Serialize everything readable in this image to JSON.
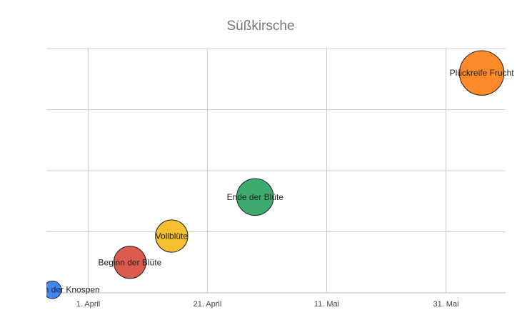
{
  "chart_data": {
    "type": "scatter",
    "subtype": "bubble",
    "title": "Süßkirsche",
    "xlabel": "",
    "ylabel": "",
    "x_axis": {
      "type": "date",
      "range": [
        "2020-03-25",
        "2020-06-10"
      ],
      "ticks": [
        {
          "date": "2020-04-01",
          "label": "1. April"
        },
        {
          "date": "2020-04-21",
          "label": "21. April"
        },
        {
          "date": "2020-05-11",
          "label": "11. Mai"
        },
        {
          "date": "2020-05-31",
          "label": "31. Mai"
        }
      ]
    },
    "y_axis": {
      "range": [
        0,
        4
      ],
      "ticks": [
        0,
        1,
        2,
        3,
        4
      ],
      "tick_labels_shown": false
    },
    "grid": true,
    "points": [
      {
        "label": "Aufbrechen der Knospen",
        "date": "2020-03-26",
        "y": 0.05,
        "size": 0.6,
        "color": "#4285f4"
      },
      {
        "label": "Beginn der Blüte",
        "date": "2020-04-08",
        "y": 0.5,
        "size": 2,
        "color": "#db5c4f"
      },
      {
        "label": "Vollblüte",
        "date": "2020-04-15",
        "y": 0.93,
        "size": 2,
        "color": "#f4c030"
      },
      {
        "label": "Ende der Blüte",
        "date": "2020-04-29",
        "y": 1.57,
        "size": 2.6,
        "color": "#3dab6e"
      },
      {
        "label": "Plückreife Frucht",
        "date": "2020-06-06",
        "y": 3.6,
        "size": 3.8,
        "color": "#ff8a2a"
      }
    ]
  }
}
